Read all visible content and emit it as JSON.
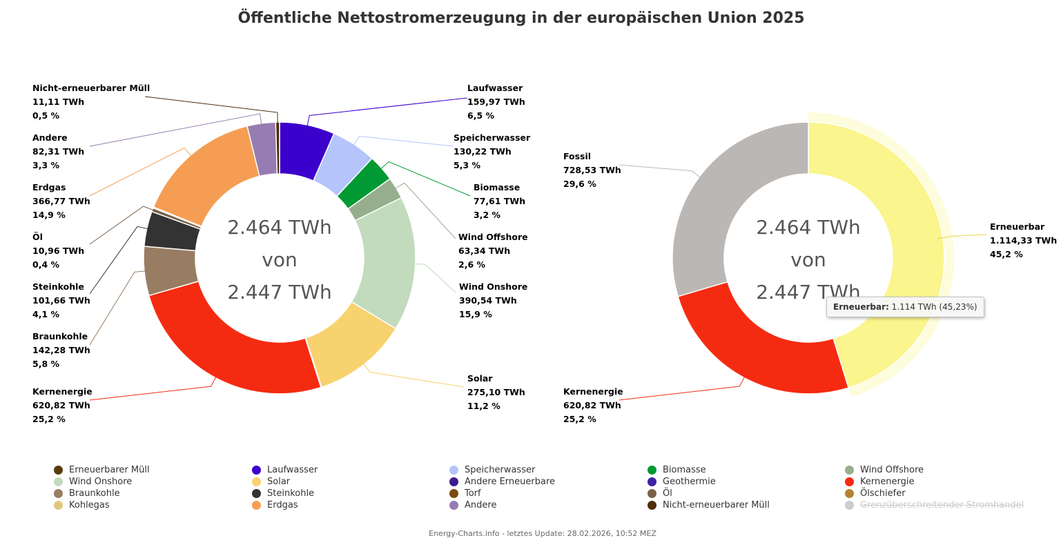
{
  "title": "Öffentliche Nettostromerzeugung in der europäischen Union 2025",
  "footer": "Energy-Charts.info - letztes Update: 28.02.2026, 10:52 MEZ",
  "chart_data": [
    {
      "type": "pie",
      "variant": "donut",
      "title": "Öffentliche Nettostromerzeugung in der europäischen Union 2025",
      "center_lines": [
        "2.464 TWh",
        "von",
        "2.447 TWh"
      ],
      "slices": [
        {
          "name": "Erneuerbarer Müll",
          "value": 0,
          "label_value": "",
          "percent": "",
          "color": "#5b3a0e"
        },
        {
          "name": "Laufwasser",
          "value": 159.97,
          "label_value": "159,97 TWh",
          "percent": "6,5 %",
          "color": "#3b00cc"
        },
        {
          "name": "Speicherwasser",
          "value": 130.22,
          "label_value": "130,22 TWh",
          "percent": "5,3 %",
          "color": "#b5c4fa"
        },
        {
          "name": "Biomasse",
          "value": 77.61,
          "label_value": "77,61 TWh",
          "percent": "3,2 %",
          "color": "#009933"
        },
        {
          "name": "Wind Offshore",
          "value": 63.34,
          "label_value": "63,34 TWh",
          "percent": "2,6 %",
          "color": "#97ae8e"
        },
        {
          "name": "Wind Onshore",
          "value": 390.54,
          "label_value": "390,54 TWh",
          "percent": "15,9 %",
          "color": "#c2dbbd"
        },
        {
          "name": "Solar",
          "value": 275.1,
          "label_value": "275,10 TWh",
          "percent": "11,2 %",
          "color": "#f8d26e"
        },
        {
          "name": "Andere Erneuerbare",
          "value": 2.0,
          "label_value": "",
          "percent": "",
          "color": "#3b1a90"
        },
        {
          "name": "Geothermie",
          "value": 0,
          "label_value": "",
          "percent": "",
          "color": "#3d22a6"
        },
        {
          "name": "Kernenergie",
          "value": 620.82,
          "label_value": "620,82 TWh",
          "percent": "25,2 %",
          "color": "#f52b11"
        },
        {
          "name": "Braunkohle",
          "value": 142.28,
          "label_value": "142,28 TWh",
          "percent": "5,8 %",
          "color": "#987d63"
        },
        {
          "name": "Steinkohle",
          "value": 101.66,
          "label_value": "101,66 TWh",
          "percent": "4,1 %",
          "color": "#333333"
        },
        {
          "name": "Torf",
          "value": 0,
          "label_value": "",
          "percent": "",
          "color": "#7a4a10"
        },
        {
          "name": "Öl",
          "value": 10.96,
          "label_value": "10,96 TWh",
          "percent": "0,4 %",
          "color": "#7a6247"
        },
        {
          "name": "Ölschiefer",
          "value": 0,
          "label_value": "",
          "percent": "",
          "color": "#b38430"
        },
        {
          "name": "Kohlegas",
          "value": 3.0,
          "label_value": "",
          "percent": "",
          "color": "#e2c780"
        },
        {
          "name": "Erdgas",
          "value": 366.77,
          "label_value": "366,77 TWh",
          "percent": "14,9 %",
          "color": "#f59e53"
        },
        {
          "name": "Andere",
          "value": 82.31,
          "label_value": "82,31 TWh",
          "percent": "3,3 %",
          "color": "#977cb3"
        },
        {
          "name": "Nicht-erneuerbarer Müll",
          "value": 11.11,
          "label_value": "11,11 TWh",
          "percent": "0,5 %",
          "color": "#4f2e08"
        }
      ]
    },
    {
      "type": "pie",
      "variant": "donut",
      "center_lines": [
        "2.464 TWh",
        "von",
        "2.447 TWh"
      ],
      "slices": [
        {
          "name": "Erneuerbar",
          "value": 1114.33,
          "label_value": "1.114,33 TWh",
          "percent": "45,2 %",
          "color": "#faf58c"
        },
        {
          "name": "Kernenergie",
          "value": 620.82,
          "label_value": "620,82 TWh",
          "percent": "25,2 %",
          "color": "#f52b11"
        },
        {
          "name": "Fossil",
          "value": 728.53,
          "label_value": "728,53 TWh",
          "percent": "29,6 %",
          "color": "#bab7b4"
        }
      ],
      "highlighted": "Erneuerbar"
    }
  ],
  "tooltip": {
    "label": "Erneuerbar:",
    "value": "1.114 TWh (45,23%)"
  },
  "legend": [
    {
      "name": "Erneuerbarer Müll",
      "color": "#5b3a0e",
      "hidden": false
    },
    {
      "name": "Laufwasser",
      "color": "#3b00cc",
      "hidden": false
    },
    {
      "name": "Speicherwasser",
      "color": "#b5c4fa",
      "hidden": false
    },
    {
      "name": "Biomasse",
      "color": "#009933",
      "hidden": false
    },
    {
      "name": "Wind Offshore",
      "color": "#97ae8e",
      "hidden": false
    },
    {
      "name": "Wind Onshore",
      "color": "#c2dbbd",
      "hidden": false
    },
    {
      "name": "Solar",
      "color": "#f8d26e",
      "hidden": false
    },
    {
      "name": "Andere Erneuerbare",
      "color": "#3b1a90",
      "hidden": false
    },
    {
      "name": "Geothermie",
      "color": "#3d22a6",
      "hidden": false
    },
    {
      "name": "Kernenergie",
      "color": "#f52b11",
      "hidden": false
    },
    {
      "name": "Braunkohle",
      "color": "#987d63",
      "hidden": false
    },
    {
      "name": "Steinkohle",
      "color": "#333333",
      "hidden": false
    },
    {
      "name": "Torf",
      "color": "#7a4a10",
      "hidden": false
    },
    {
      "name": "Öl",
      "color": "#7a6247",
      "hidden": false
    },
    {
      "name": "Ölschiefer",
      "color": "#b38430",
      "hidden": false
    },
    {
      "name": "Kohlegas",
      "color": "#e2c780",
      "hidden": false
    },
    {
      "name": "Erdgas",
      "color": "#f59e53",
      "hidden": false
    },
    {
      "name": "Andere",
      "color": "#977cb3",
      "hidden": false
    },
    {
      "name": "Nicht-erneuerbarer Müll",
      "color": "#4f2e08",
      "hidden": false
    },
    {
      "name": "Grenzüberschreitender Stromhandel",
      "color": "#cccccc",
      "hidden": true
    }
  ]
}
